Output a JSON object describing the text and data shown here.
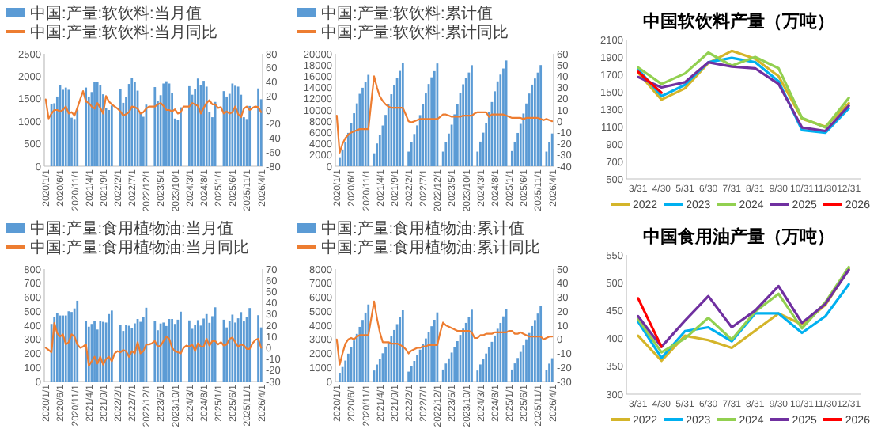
{
  "chart_data": [
    {
      "type": "bar",
      "legend": "top",
      "categories": [
        "2020/1/1",
        null,
        null,
        null,
        null,
        "2020/6/1",
        null,
        null,
        null,
        null,
        "2020/11/1",
        null,
        null,
        null,
        null,
        "2021/4/1",
        null,
        null,
        null,
        null,
        "2021/9/1",
        null,
        null,
        null,
        null,
        "2022/2/1",
        null,
        null,
        null,
        null,
        "2022/7/1",
        null,
        null,
        null,
        null,
        "2022/12/1",
        null,
        null,
        null,
        null,
        "2023/5/1",
        null,
        null,
        null,
        null,
        "2023/10/1",
        null,
        null,
        null,
        null,
        "2024/3/1",
        null,
        null,
        null,
        null,
        "2024/8/1",
        null,
        null,
        null,
        null,
        "2025/1/1",
        null,
        null,
        null,
        null,
        "2025/6/1",
        null,
        null,
        null,
        null,
        "2025/11/1",
        null,
        null,
        null,
        null,
        "2026/4/1"
      ],
      "ylim": [
        0,
        2500
      ],
      "yticks": [
        0,
        500,
        1000,
        1500,
        2000,
        2500
      ],
      "y2lim": [
        -80,
        80
      ],
      "y2ticks": [
        -80,
        -60,
        -40,
        -20,
        0,
        20,
        40,
        60,
        80
      ],
      "series": [
        {
          "name": "中国:产量:软饮料:当月值",
          "type": "bar",
          "color": "#5b9bd5",
          "values": [
            null,
            null,
            1380,
            1400,
            1550,
            1800,
            1700,
            1750,
            1700,
            1080,
            1050,
            1250,
            null,
            null,
            1750,
            1550,
            1650,
            1880,
            1880,
            1800,
            1600,
            1300,
            1250,
            1350,
            null,
            null,
            1720,
            1410,
            1540,
            1830,
            1970,
            1880,
            1680,
            1190,
            1100,
            1370,
            null,
            null,
            1760,
            1450,
            1580,
            1840,
            1890,
            1840,
            1620,
            1060,
            1030,
            1310,
            null,
            null,
            1780,
            1590,
            1710,
            1950,
            1800,
            1900,
            1770,
            1200,
            1090,
            1430,
            null,
            null,
            1670,
            1550,
            1610,
            1840,
            1790,
            1770,
            1590,
            1090,
            1050,
            1340,
            null,
            null,
            1730,
            1490
          ]
        },
        {
          "name": "中国:产量:软饮料:当月同比",
          "type": "line",
          "axis": "y2",
          "color": "#ed7d31",
          "values": [
            15,
            -12,
            -5,
            0,
            0,
            -2,
            0,
            5,
            -5,
            -3,
            -8,
            3,
            15,
            27,
            12,
            10,
            5,
            2,
            10,
            3,
            -5,
            20,
            12,
            8,
            5,
            2,
            -2,
            -8,
            -6,
            -3,
            5,
            4,
            2,
            -5,
            -3,
            2,
            5,
            5,
            5,
            8,
            10,
            6,
            0,
            0,
            -2,
            1,
            -5,
            -3,
            5,
            5,
            5,
            10,
            8,
            6,
            -5,
            3,
            10,
            14,
            8,
            8,
            3,
            4,
            -5,
            -2,
            -5,
            -3,
            5,
            -6,
            -10,
            2,
            5,
            0,
            3,
            5,
            4,
            -3
          ]
        }
      ]
    },
    {
      "type": "bar",
      "legend": "top",
      "categories": [
        "2020/1/1",
        null,
        null,
        null,
        null,
        "2020/6/1",
        null,
        null,
        null,
        null,
        "2020/11/1",
        null,
        null,
        null,
        null,
        "2021/4/1",
        null,
        null,
        null,
        null,
        "2021/9/1",
        null,
        null,
        null,
        null,
        "2022/2/1",
        null,
        null,
        null,
        null,
        "2022/7/1",
        null,
        null,
        null,
        null,
        "2022/12/1",
        null,
        null,
        null,
        null,
        "2023/5/1",
        null,
        null,
        null,
        null,
        "2023/10/1",
        null,
        null,
        null,
        null,
        "2024/3/1",
        null,
        null,
        null,
        null,
        "2024/8/1",
        null,
        null,
        null,
        null,
        "2025/1/1",
        null,
        null,
        null,
        null,
        "2025/6/1",
        null,
        null,
        null,
        null,
        "2025/11/1",
        null,
        null,
        null,
        null,
        "2026/4/1"
      ],
      "ylim": [
        0,
        20000
      ],
      "yticks": [
        0,
        2000,
        4000,
        6000,
        8000,
        10000,
        12000,
        14000,
        16000,
        18000,
        20000
      ],
      "y2lim": [
        -40,
        60
      ],
      "y2ticks": [
        -40,
        -30,
        -20,
        -10,
        0,
        10,
        20,
        30,
        40,
        50,
        60
      ],
      "series": [
        {
          "name": "中国:产量:软饮料:累计值",
          "type": "bar",
          "color": "#5b9bd5",
          "values": [
            null,
            1600,
            2980,
            4380,
            5930,
            7730,
            9430,
            11180,
            12880,
            13960,
            15010,
            16260,
            null,
            2300,
            4050,
            5600,
            7250,
            9130,
            11010,
            12810,
            14410,
            15710,
            16960,
            18310,
            null,
            2600,
            4320,
            5730,
            7270,
            9100,
            11070,
            12950,
            14630,
            15820,
            16920,
            18290,
            null,
            2600,
            4360,
            5810,
            7390,
            9230,
            11120,
            12960,
            14580,
            15640,
            16670,
            17980,
            null,
            2600,
            4380,
            5970,
            7680,
            9630,
            11430,
            13330,
            15100,
            16300,
            17390,
            18820,
            null,
            2700,
            4370,
            5920,
            7530,
            9370,
            11160,
            12930,
            14520,
            15610,
            16660,
            18000,
            null,
            2600,
            4330,
            5820
          ]
        },
        {
          "name": "中国:产量:软饮料:累计同比",
          "type": "line",
          "axis": "y2",
          "color": "#ed7d31",
          "values": [
            5,
            -28,
            -20,
            -15,
            -12,
            -10,
            -9,
            -8,
            -7,
            -7,
            -7,
            -7,
            17,
            40,
            30,
            22,
            18,
            15,
            13,
            12,
            12,
            12,
            12,
            12,
            6,
            0,
            -1,
            0,
            1,
            2,
            2,
            2,
            2,
            2,
            2,
            2,
            4,
            6,
            6,
            5,
            4,
            4,
            4,
            4,
            5,
            5,
            5,
            5,
            7,
            8,
            8,
            8,
            8,
            4,
            6,
            6,
            6,
            6,
            6,
            5,
            4,
            3,
            3,
            3,
            3,
            2,
            3,
            3,
            3,
            3,
            3,
            2,
            1,
            2,
            1,
            0
          ]
        }
      ]
    },
    {
      "type": "line",
      "title": "中国软饮料产量（万吨）",
      "legend": "bottom",
      "marker": "none",
      "categories": [
        "3/31",
        "4/30",
        "5/31",
        "6/30",
        "7/31",
        "8/31",
        "9/30",
        "10/31",
        "11/30",
        "12/31"
      ],
      "ylim": [
        500,
        2100
      ],
      "yticks": [
        500,
        700,
        900,
        1100,
        1300,
        1500,
        1700,
        1900,
        2100
      ],
      "series": [
        {
          "name": "2022",
          "color": "#d4b52a",
          "values": [
            1720,
            1410,
            1540,
            1830,
            1970,
            1880,
            1680,
            1190,
            1100,
            1370
          ]
        },
        {
          "name": "2023",
          "color": "#00b0f0",
          "values": [
            1760,
            1450,
            1580,
            1840,
            1890,
            1840,
            1620,
            1060,
            1030,
            1310
          ]
        },
        {
          "name": "2024",
          "color": "#92d050",
          "values": [
            1780,
            1590,
            1710,
            1950,
            1800,
            1900,
            1770,
            1200,
            1090,
            1430
          ]
        },
        {
          "name": "2025",
          "color": "#7030a0",
          "values": [
            1670,
            1550,
            1610,
            1840,
            1790,
            1770,
            1590,
            1090,
            1050,
            1340
          ]
        },
        {
          "name": "2026",
          "color": "#ff0000",
          "values": [
            1730,
            1490,
            null,
            null,
            null,
            null,
            null,
            null,
            null,
            null
          ]
        }
      ]
    },
    {
      "type": "bar",
      "legend": "top",
      "categories": [
        "2020/1/1",
        null,
        null,
        null,
        null,
        "2020/6/1",
        null,
        null,
        null,
        null,
        "2020/11/1",
        null,
        null,
        null,
        null,
        "2021/4/1",
        null,
        null,
        null,
        null,
        "2021/9/1",
        null,
        null,
        null,
        null,
        "2022/2/1",
        null,
        null,
        null,
        null,
        "2022/7/1",
        null,
        null,
        null,
        null,
        "2022/12/1",
        null,
        null,
        null,
        null,
        "2023/5/1",
        null,
        null,
        null,
        null,
        "2023/10/1",
        null,
        null,
        null,
        null,
        "2024/3/1",
        null,
        null,
        null,
        null,
        "2024/8/1",
        null,
        null,
        null,
        null,
        "2025/1/1",
        null,
        null,
        null,
        null,
        "2025/6/1",
        null,
        null,
        null,
        null,
        "2025/11/1",
        null,
        null,
        null,
        null,
        "2026/4/1"
      ],
      "ylim": [
        0,
        800
      ],
      "yticks": [
        0,
        100,
        200,
        300,
        400,
        500,
        600,
        700,
        800
      ],
      "y2lim": [
        -30,
        70
      ],
      "y2ticks": [
        -30,
        -20,
        -10,
        0,
        10,
        20,
        30,
        40,
        50,
        60,
        70
      ],
      "series": [
        {
          "name": "中国:产量:食用植物油:当月值",
          "type": "bar",
          "color": "#5b9bd5",
          "values": [
            null,
            null,
            410,
            460,
            490,
            470,
            470,
            470,
            500,
            495,
            520,
            575,
            null,
            null,
            430,
            390,
            410,
            430,
            370,
            430,
            425,
            420,
            480,
            505,
            null,
            null,
            405,
            360,
            405,
            397,
            383,
            414,
            445,
            425,
            460,
            525,
            null,
            null,
            430,
            365,
            413,
            420,
            395,
            445,
            445,
            410,
            440,
            497,
            null,
            null,
            435,
            375,
            400,
            437,
            398,
            448,
            480,
            418,
            465,
            528,
            null,
            null,
            440,
            385,
            432,
            476,
            420,
            450,
            494,
            428,
            462,
            523,
            null,
            null,
            472,
            385
          ]
        },
        {
          "name": "中国:产量:食用植物油:当月同比",
          "type": "line",
          "axis": "y2",
          "color": "#ed7d31",
          "values": [
            0,
            -2,
            -4,
            22,
            13,
            10,
            12,
            3,
            5,
            12,
            10,
            3,
            0,
            1,
            3,
            -16,
            -12,
            -8,
            -14,
            -8,
            -15,
            -10,
            -8,
            -12,
            -5,
            -3,
            -4,
            -2,
            -3,
            -8,
            -3,
            -5,
            5,
            -5,
            -3,
            3,
            3,
            4,
            6,
            1,
            2,
            6,
            10,
            8,
            0,
            -3,
            -4,
            -5,
            0,
            2,
            1,
            3,
            -3,
            4,
            1,
            1,
            8,
            2,
            6,
            6,
            3,
            5,
            2,
            3,
            8,
            9,
            5,
            1,
            3,
            2,
            -1,
            -1,
            4,
            7,
            8,
            0
          ]
        }
      ]
    },
    {
      "type": "bar",
      "legend": "top",
      "categories": [
        "2020/1/1",
        null,
        null,
        null,
        null,
        "2020/6/1",
        null,
        null,
        null,
        null,
        "2020/11/1",
        null,
        null,
        null,
        null,
        "2021/4/1",
        null,
        null,
        null,
        null,
        "2021/9/1",
        null,
        null,
        null,
        null,
        "2022/2/1",
        null,
        null,
        null,
        null,
        "2022/7/1",
        null,
        null,
        null,
        null,
        "2022/12/1",
        null,
        null,
        null,
        null,
        "2023/5/1",
        null,
        null,
        null,
        null,
        "2023/10/1",
        null,
        null,
        null,
        null,
        "2024/3/1",
        null,
        null,
        null,
        null,
        "2024/8/1",
        null,
        null,
        null,
        null,
        "2025/1/1",
        null,
        null,
        null,
        null,
        "2025/6/1",
        null,
        null,
        null,
        null,
        "2025/11/1",
        null,
        null,
        null,
        null,
        "2026/4/1"
      ],
      "ylim": [
        0,
        8000
      ],
      "yticks": [
        0,
        1000,
        2000,
        3000,
        4000,
        5000,
        6000,
        7000,
        8000
      ],
      "y2lim": [
        -30,
        50
      ],
      "y2ticks": [
        -30,
        -20,
        -10,
        0,
        10,
        20,
        30,
        40,
        50
      ],
      "series": [
        {
          "name": "中国:产量:食用植物油:累计值",
          "type": "bar",
          "color": "#5b9bd5",
          "values": [
            null,
            620,
            1030,
            1490,
            1980,
            2450,
            2920,
            3390,
            3890,
            4385,
            4905,
            5480,
            null,
            780,
            1210,
            1600,
            2010,
            2440,
            2810,
            3240,
            3665,
            4085,
            4565,
            5070,
            null,
            700,
            1105,
            1465,
            1870,
            2267,
            2650,
            3064,
            3509,
            3934,
            4394,
            4919,
            null,
            850,
            1280,
            1645,
            2058,
            2478,
            2873,
            3318,
            3763,
            4173,
            4613,
            5110,
            null,
            780,
            1215,
            1590,
            1990,
            2427,
            2825,
            3273,
            3753,
            4171,
            4636,
            5164,
            null,
            850,
            1290,
            1675,
            2107,
            2583,
            3003,
            3453,
            3947,
            4375,
            4837,
            5360,
            null,
            800,
            1272,
            1657
          ]
        },
        {
          "name": "中国:产量:食用植物油:累计同比",
          "type": "line",
          "axis": "y2",
          "color": "#ed7d31",
          "values": [
            0,
            -18,
            -10,
            -3,
            0,
            1,
            0,
            2,
            3,
            3,
            3,
            3,
            15,
            27,
            15,
            5,
            -2,
            -2,
            -2,
            -3,
            -3,
            -3,
            -4,
            -5,
            -7,
            -10,
            -8,
            -7,
            -6,
            -6,
            -5,
            -5,
            -4,
            -4,
            -4,
            -4,
            5,
            12,
            10,
            9,
            8,
            7,
            6,
            6,
            6,
            6,
            6,
            5,
            1,
            1,
            3,
            3,
            4,
            4,
            4,
            5,
            5,
            5,
            5,
            5,
            6,
            6,
            4,
            4,
            5,
            4,
            3,
            2,
            2,
            2,
            2,
            2,
            0,
            1,
            2,
            2
          ]
        }
      ]
    },
    {
      "type": "line",
      "title": "中国食用油产量（万吨）",
      "legend": "bottom",
      "marker": "none",
      "categories": [
        "3/31",
        "4/30",
        "5/31",
        "6/30",
        "7/31",
        "8/31",
        "9/30",
        "10/31",
        "11/30",
        "12/31"
      ],
      "ylim": [
        300,
        550
      ],
      "yticks": [
        300,
        350,
        400,
        450,
        500,
        550
      ],
      "series": [
        {
          "name": "2022",
          "color": "#d4b52a",
          "values": [
            405,
            360,
            405,
            397,
            383,
            414,
            445,
            425,
            460,
            525
          ]
        },
        {
          "name": "2023",
          "color": "#00b0f0",
          "values": [
            430,
            365,
            413,
            420,
            395,
            445,
            445,
            410,
            440,
            497
          ]
        },
        {
          "name": "2024",
          "color": "#92d050",
          "values": [
            435,
            375,
            400,
            437,
            398,
            448,
            480,
            418,
            465,
            528
          ]
        },
        {
          "name": "2025",
          "color": "#7030a0",
          "values": [
            440,
            385,
            432,
            476,
            420,
            450,
            494,
            428,
            462,
            523
          ]
        },
        {
          "name": "2026",
          "color": "#ff0000",
          "values": [
            472,
            385,
            null,
            null,
            null,
            null,
            null,
            null,
            null,
            null
          ]
        }
      ]
    }
  ]
}
